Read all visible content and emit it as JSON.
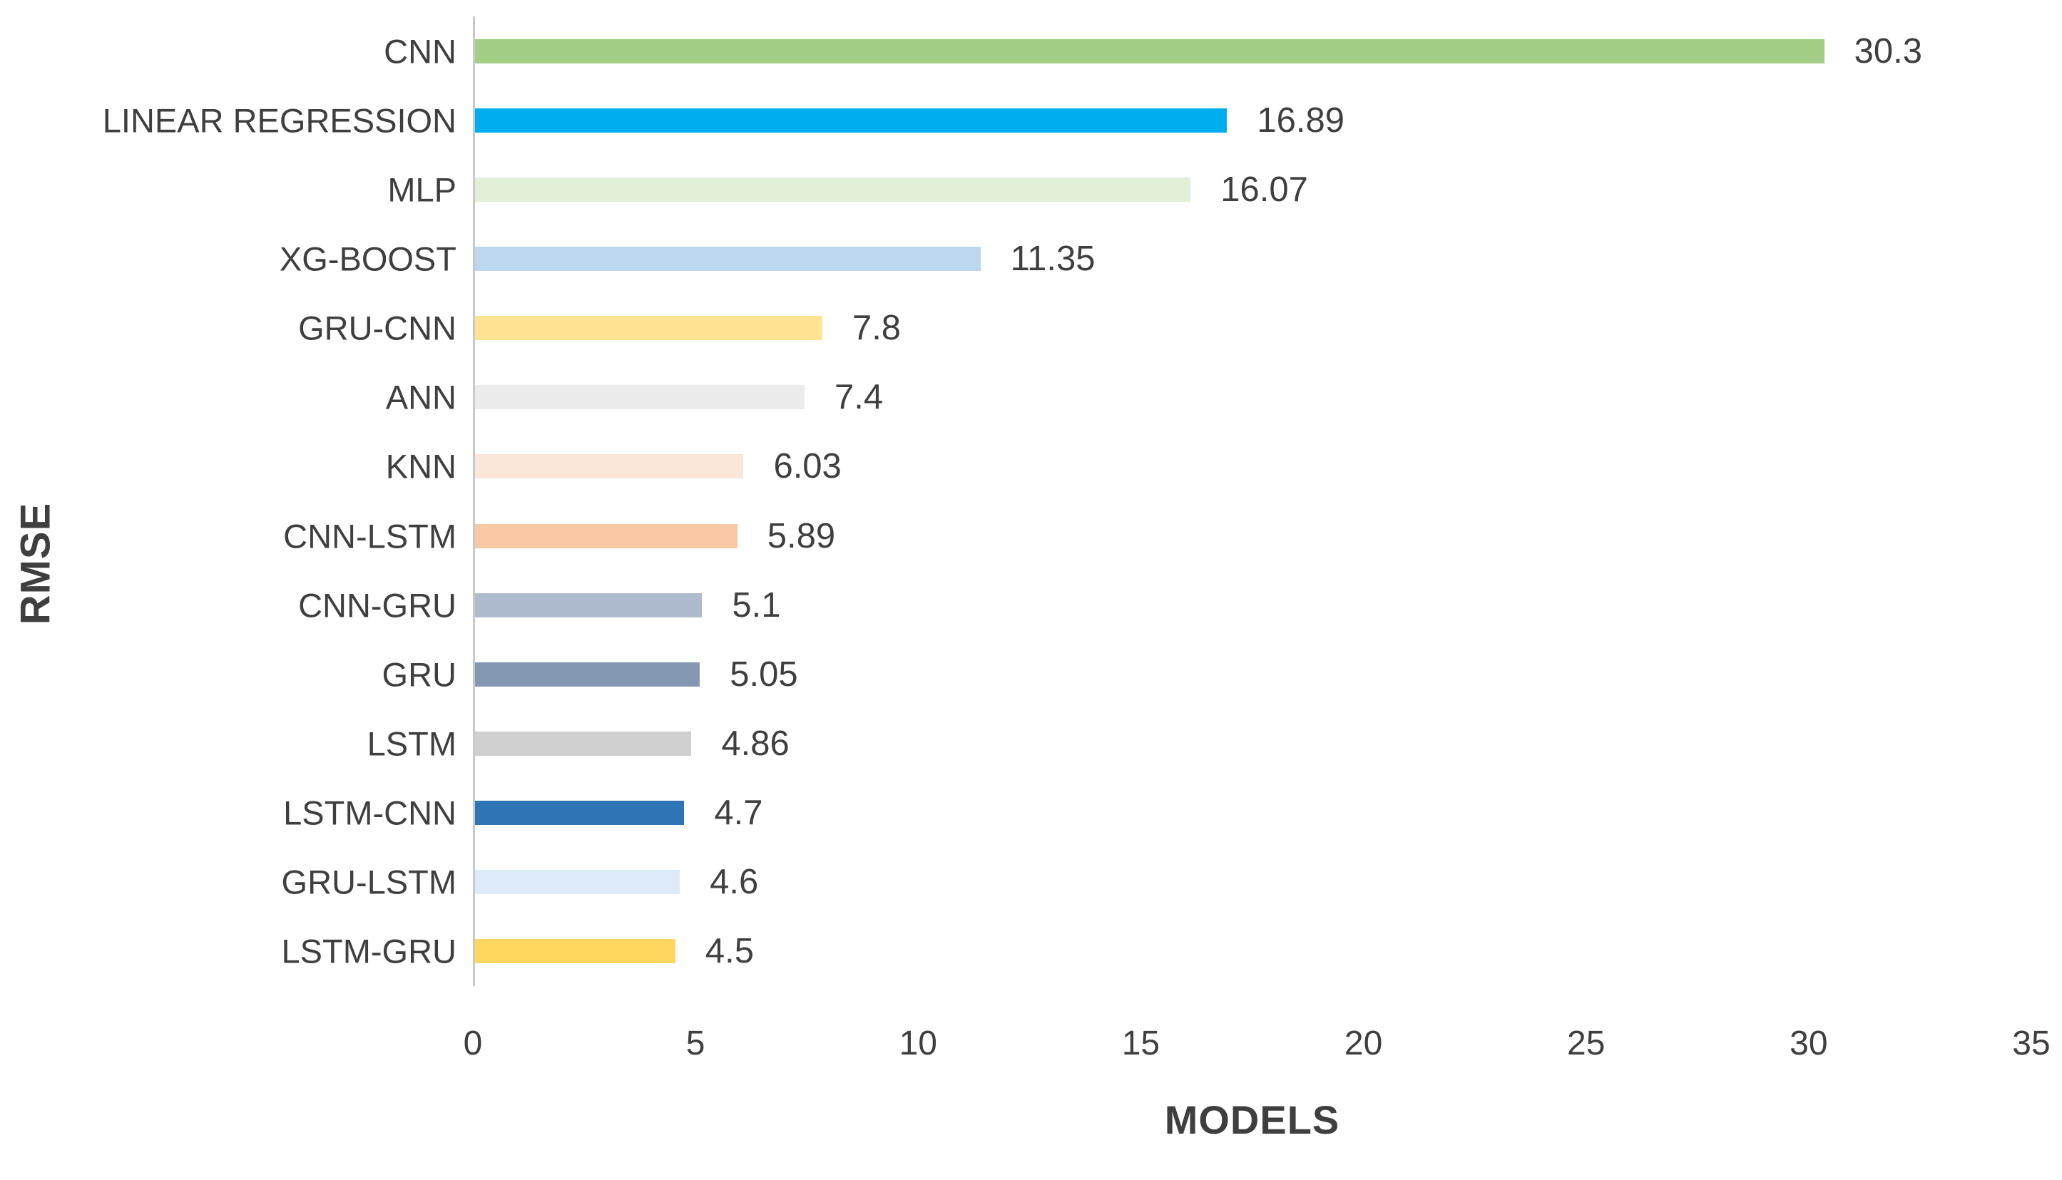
{
  "chart_data": {
    "type": "bar",
    "orientation": "horizontal",
    "title": "",
    "xlabel": "MODELS",
    "ylabel": "RMSE",
    "xlim": [
      0,
      35
    ],
    "xticks": [
      0,
      5,
      10,
      15,
      20,
      25,
      30,
      35
    ],
    "grid": false,
    "legend_position": "none",
    "categories": [
      "CNN",
      "LINEAR REGRESSION",
      "MLP",
      "XG-BOOST",
      "GRU-CNN",
      "ANN",
      "KNN",
      "CNN-LSTM",
      "CNN-GRU",
      "GRU",
      "LSTM",
      "LSTM-CNN",
      "GRU-LSTM",
      "LSTM-GRU"
    ],
    "values": [
      30.3,
      16.89,
      16.07,
      11.35,
      7.8,
      7.4,
      6.03,
      5.89,
      5.1,
      5.05,
      4.86,
      4.7,
      4.6,
      4.5
    ],
    "data_labels": [
      "30.3",
      "16.89",
      "16.07",
      "11.35",
      "7.8",
      "7.4",
      "6.03",
      "5.89",
      "5.1",
      "5.05",
      "4.86",
      "4.7",
      "4.6",
      "4.5"
    ],
    "bar_colors": [
      "#A3CE86",
      "#00AEEF",
      "#E1EFD9",
      "#BDD7EE",
      "#FFE493",
      "#ECECEC",
      "#FBE7D9",
      "#F8C9A4",
      "#AEBACE",
      "#8497B0",
      "#D0D0D0",
      "#2E75B6",
      "#DDEAF7",
      "#FFD75F"
    ]
  },
  "colors": {
    "text": "#3F3F3F",
    "axis_line": "#C9C9C9",
    "background": "#FFFFFF"
  }
}
